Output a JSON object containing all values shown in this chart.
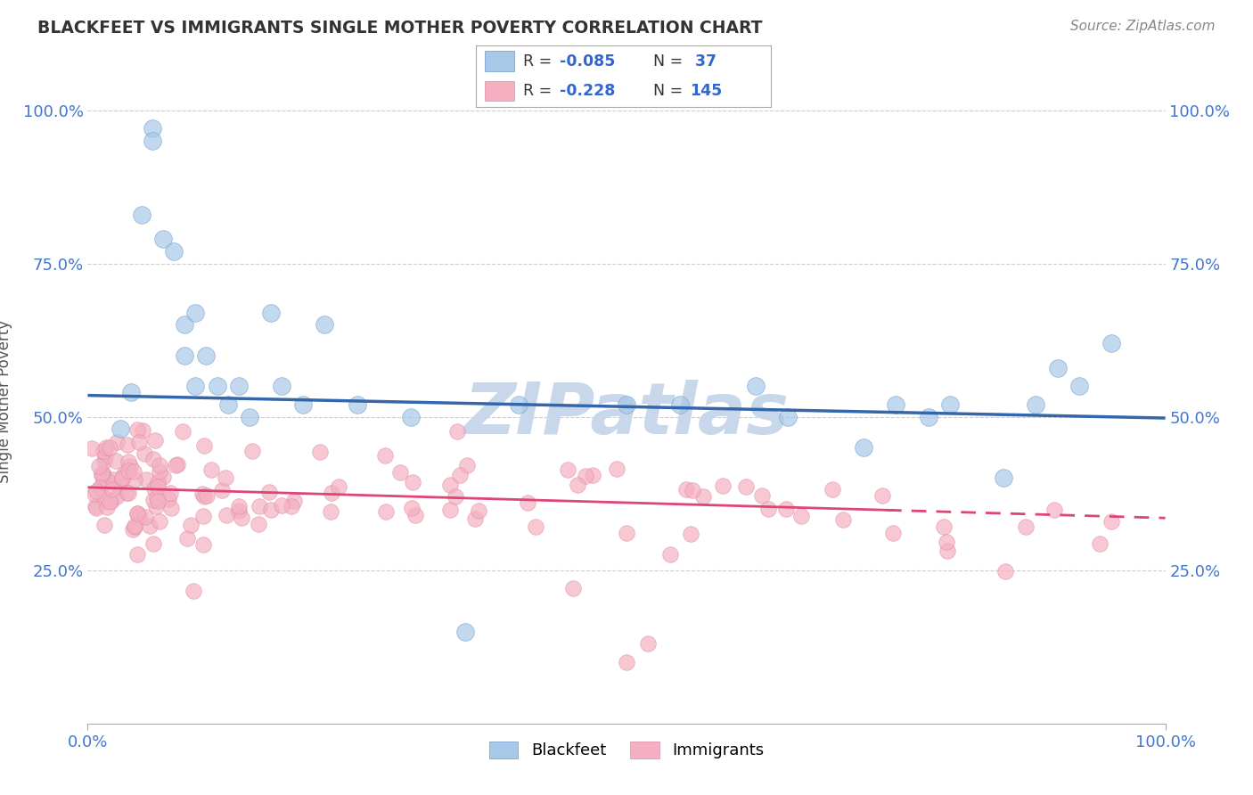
{
  "title": "BLACKFEET VS IMMIGRANTS SINGLE MOTHER POVERTY CORRELATION CHART",
  "source": "Source: ZipAtlas.com",
  "ylabel": "Single Mother Poverty",
  "legend_blue_label": "Blackfeet",
  "legend_pink_label": "Immigrants",
  "blue_color": "#a8c8e8",
  "blue_edge_color": "#6699cc",
  "blue_line_color": "#3366aa",
  "pink_color": "#f4b0c0",
  "pink_edge_color": "#dd88aa",
  "pink_line_color": "#dd4477",
  "background_color": "#ffffff",
  "grid_color": "#cccccc",
  "watermark_color": "#c8d8ea",
  "tick_label_color": "#4477cc",
  "title_color": "#333333",
  "source_color": "#888888",
  "ylabel_color": "#555555",
  "legend_r_color": "#3366cc",
  "legend_border_color": "#aaaaaa",
  "xlim": [
    0.0,
    1.0
  ],
  "ylim": [
    0.0,
    1.05
  ],
  "yticks": [
    0.25,
    0.5,
    0.75,
    1.0
  ],
  "ytick_labels_left": [
    "25.0%",
    "50.0%",
    "75.0%",
    "100.0%"
  ],
  "ytick_labels_right": [
    "25.0%",
    "50.0%",
    "75.0%",
    "100.0%"
  ],
  "blue_line_x0": 0.0,
  "blue_line_y0": 0.535,
  "blue_line_x1": 1.0,
  "blue_line_y1": 0.498,
  "pink_line_x0": 0.0,
  "pink_line_y0": 0.385,
  "pink_line_x1": 1.0,
  "pink_line_y1": 0.335,
  "pink_line_solid_end": 0.75
}
